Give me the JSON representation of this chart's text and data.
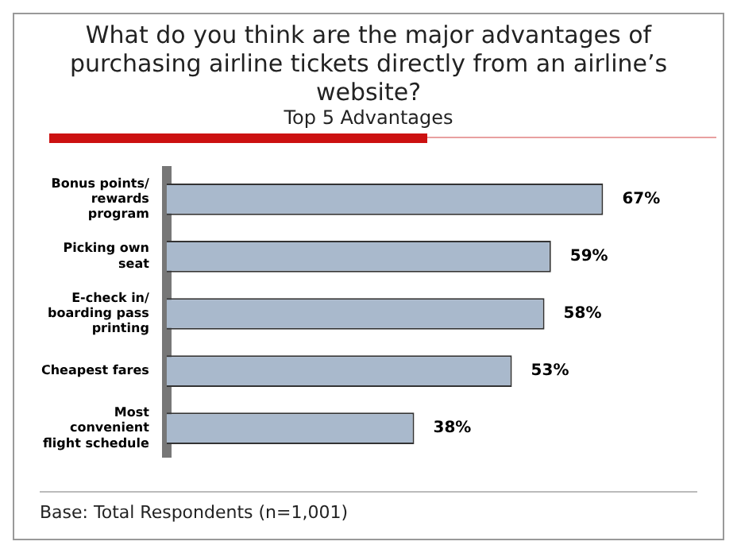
{
  "chart_data": {
    "type": "bar",
    "orientation": "horizontal",
    "title": "What do you think are the major advantages of purchasing airline tickets directly from an airline’s website?",
    "subtitle": "Top 5 Advantages",
    "categories": [
      "Bonus points/\nrewards\nprogram",
      "Picking own\nseat",
      "E-check in/\nboarding pass\nprinting",
      "Cheapest fares",
      "Most\nconvenient\nflight schedule"
    ],
    "values": [
      67,
      59,
      58,
      53,
      38
    ],
    "color": "#a9b9cc",
    "value_labels": [
      "67%",
      "59%",
      "58%",
      "53%",
      "38%"
    ],
    "legend": false,
    "annotations": [
      "Base: Total Respondents (n=1,001)"
    ]
  }
}
